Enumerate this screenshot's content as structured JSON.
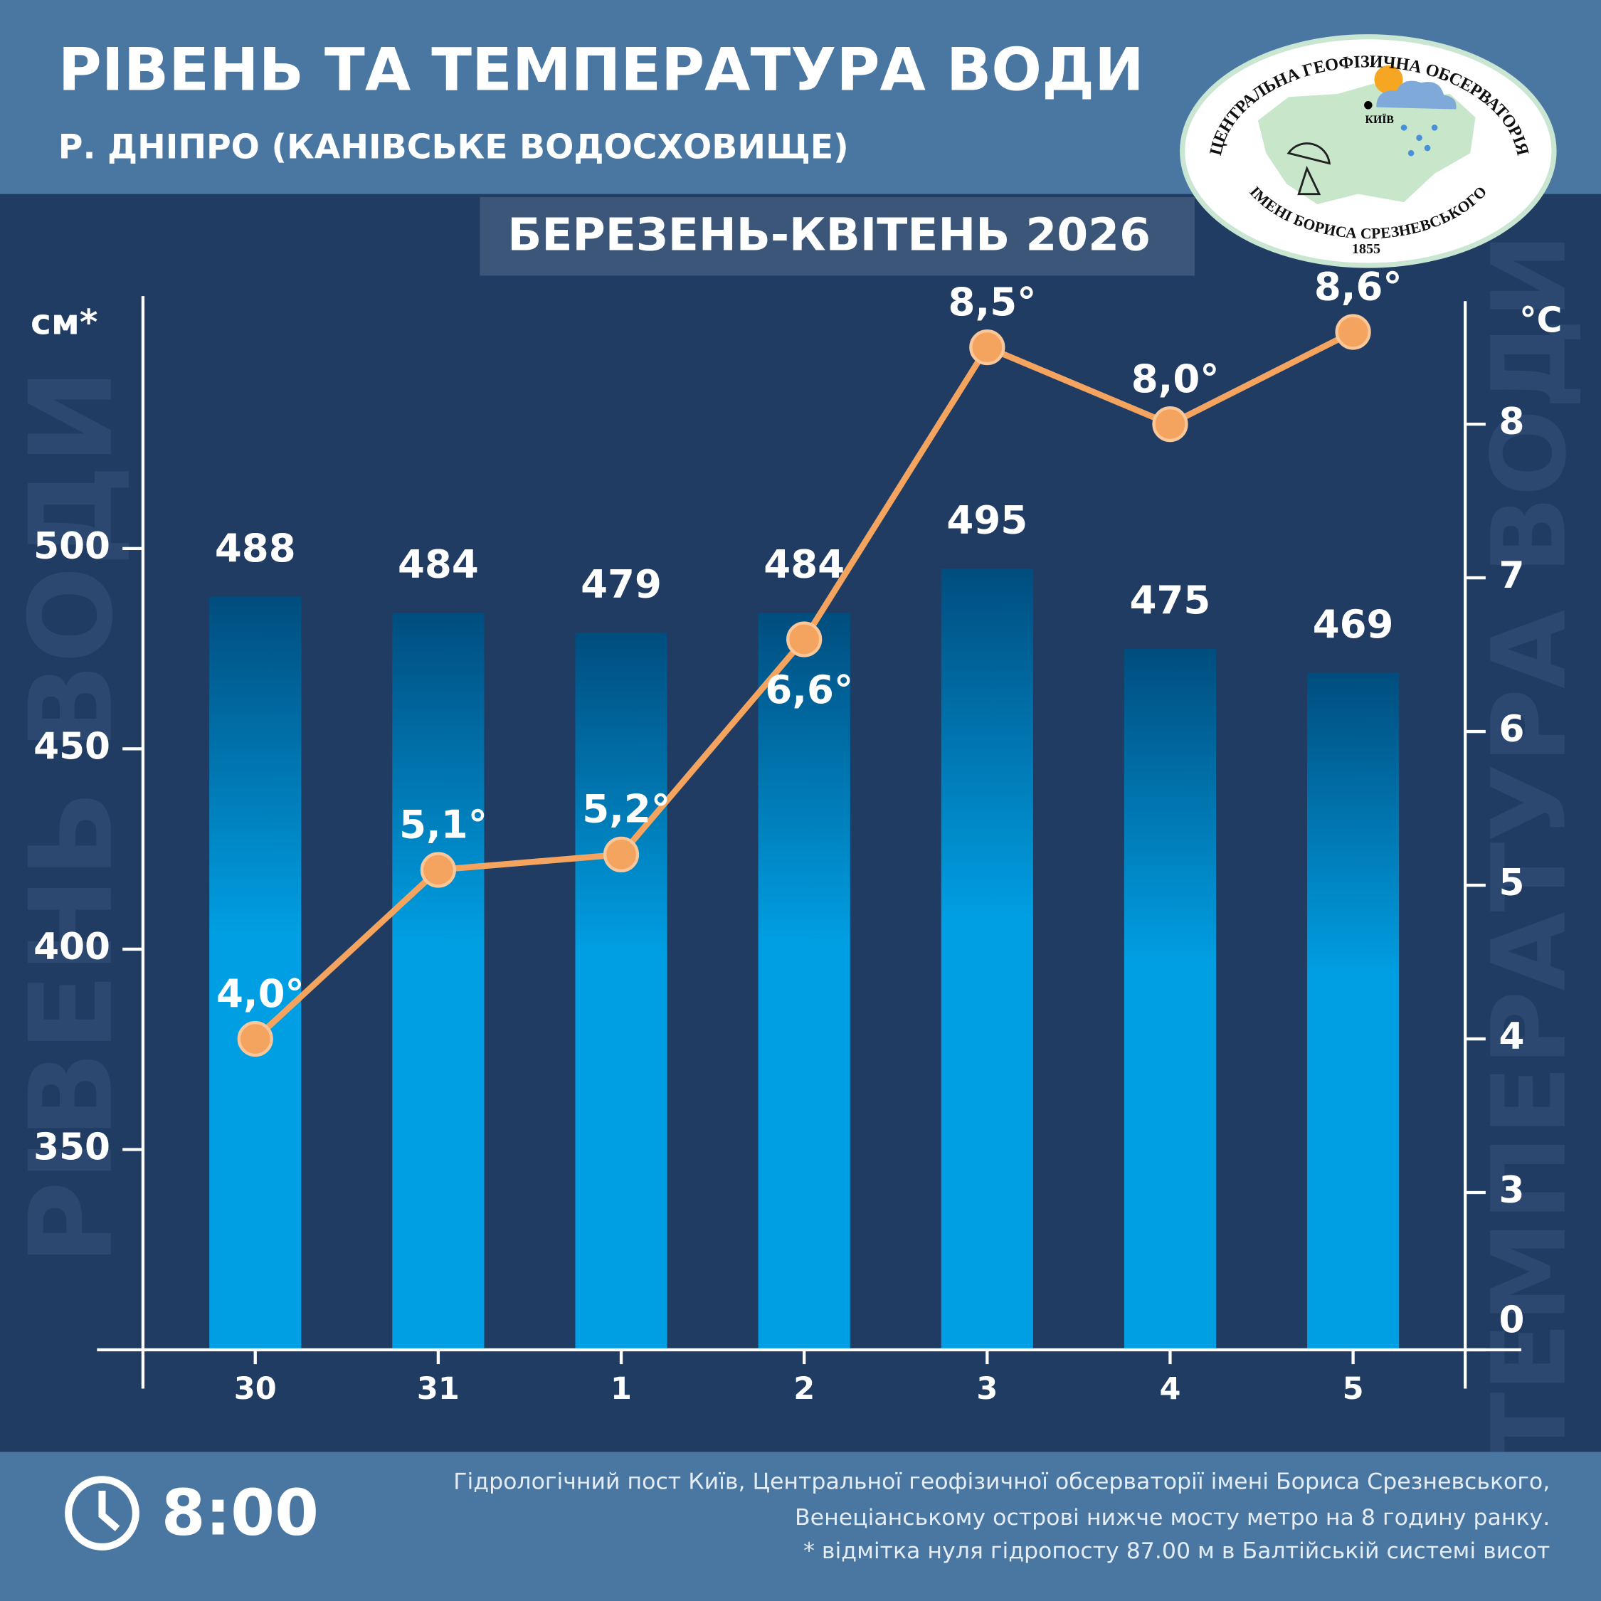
{
  "header": {
    "title": "РІВЕНЬ ТА ТЕМПЕРАТУРА ВОДИ",
    "subtitle": "Р. ДНІПРО (КАНІВСЬКЕ ВОДОСХОВИЩЕ)",
    "period": "БЕРЕЗЕНЬ-КВІТЕНЬ 2026"
  },
  "logo": {
    "top": "ЦЕНТРАЛЬНА ГЕОФІЗИЧНА ОБСЕРВАТОРІЯ",
    "city": "КИЇВ",
    "bottom": "ІМЕНІ БОРИСА СРЕЗНЕВСЬКОГО",
    "year": "1855"
  },
  "chart_data": {
    "type": "bar",
    "categories": [
      "30",
      "31",
      "1",
      "2",
      "3",
      "4",
      "5"
    ],
    "ylabel": "см*",
    "y2label": "°C",
    "y_watermark": "РІВЕНЬ ВОДИ",
    "y2_watermark": "ТЕМПЕРАТУРА ВОДИ",
    "series": [
      {
        "type": "bar",
        "color": "#009fe3",
        "top_color": "#004d7e",
        "values": [
          488,
          484,
          479,
          484,
          495,
          475,
          469
        ]
      },
      {
        "type": "line",
        "axis": "y2",
        "color": "#f4a45f",
        "values": [
          4.0,
          5.1,
          5.2,
          6.6,
          8.5,
          8.0,
          8.6
        ],
        "value_labels": [
          "4,0°",
          "5,1°",
          "5,2°",
          "6,6°",
          "8,5°",
          "8,0°",
          "8,6°"
        ]
      }
    ],
    "ylim": [
      300,
      563
    ],
    "yticks": [
      350,
      400,
      450,
      500
    ],
    "y2lim": [
      0,
      8.8
    ],
    "y2ticks": [
      0,
      3,
      4,
      5,
      6,
      7,
      8
    ],
    "y2_axis_break": [
      0,
      3
    ]
  },
  "footer": {
    "time": "8:00",
    "notes": [
      "Гідрологічний пост Київ, Центральної геофізичної обсерваторії імені Бориса Срезневського,",
      "Венеціанському острові нижче мосту метро  на 8 годину ранку.",
      "* відмітка нуля гідропосту 87.00 м в Балтійській системі висот"
    ]
  }
}
